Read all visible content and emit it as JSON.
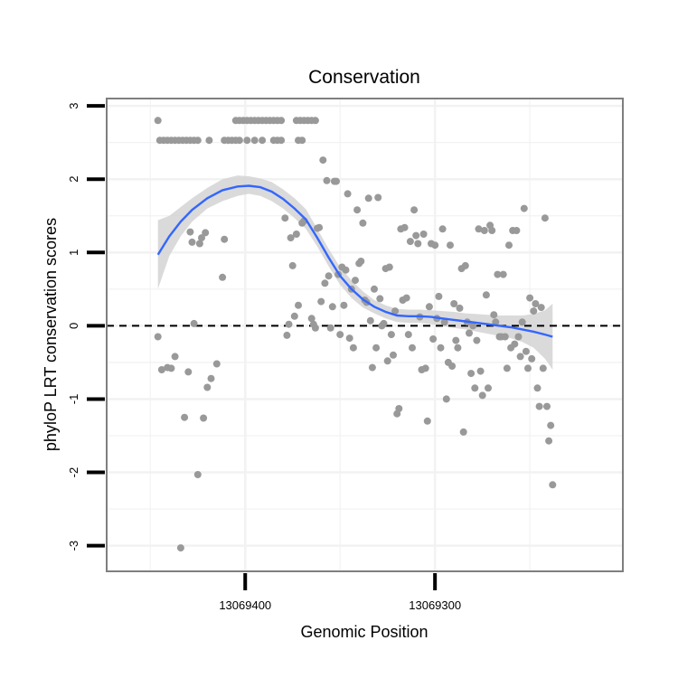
{
  "chart_data": {
    "type": "scatter",
    "title": "Conservation",
    "xlabel": "Genomic Position",
    "ylabel": "phyloP LRT conservation scores",
    "x_reversed": true,
    "xlim": [
      13069473,
      13069201
    ],
    "ylim": [
      -3.35,
      3.1
    ],
    "x_ticks": [
      13069400,
      13069300
    ],
    "x_tick_labels": [
      "13069400",
      "13069300"
    ],
    "y_ticks": [
      -3,
      -2,
      -1,
      0,
      1,
      2,
      3
    ],
    "y_tick_labels": [
      "-3",
      "-2",
      "-1",
      "0",
      "1",
      "2",
      "3"
    ],
    "grid": true,
    "reference_line": {
      "y": 0,
      "style": "dashed"
    },
    "colors": {
      "points": "#999999",
      "smooth_line": "#3366ff",
      "confidence_band": "#d3d3d3",
      "panel_border": "#7f7f7f",
      "grid": "#f2f2f2"
    },
    "points": [
      [
        13069446,
        2.8
      ],
      [
        13069445,
        2.53
      ],
      [
        13069443,
        2.53
      ],
      [
        13069441,
        2.53
      ],
      [
        13069439,
        2.53
      ],
      [
        13069437,
        2.53
      ],
      [
        13069435,
        2.53
      ],
      [
        13069433,
        2.53
      ],
      [
        13069431,
        2.53
      ],
      [
        13069429,
        2.53
      ],
      [
        13069427,
        2.53
      ],
      [
        13069425,
        2.53
      ],
      [
        13069419,
        2.53
      ],
      [
        13069411,
        2.53
      ],
      [
        13069409,
        2.53
      ],
      [
        13069407,
        2.53
      ],
      [
        13069405,
        2.53
      ],
      [
        13069403,
        2.53
      ],
      [
        13069399,
        2.53
      ],
      [
        13069395,
        2.53
      ],
      [
        13069391,
        2.53
      ],
      [
        13069385,
        2.53
      ],
      [
        13069383,
        2.53
      ],
      [
        13069381,
        2.53
      ],
      [
        13069372,
        2.53
      ],
      [
        13069370,
        2.53
      ],
      [
        13069405,
        2.8
      ],
      [
        13069403,
        2.8
      ],
      [
        13069401,
        2.8
      ],
      [
        13069399,
        2.8
      ],
      [
        13069397,
        2.8
      ],
      [
        13069395,
        2.8
      ],
      [
        13069393,
        2.8
      ],
      [
        13069391,
        2.8
      ],
      [
        13069389,
        2.8
      ],
      [
        13069387,
        2.8
      ],
      [
        13069385,
        2.8
      ],
      [
        13069383,
        2.8
      ],
      [
        13069381,
        2.8
      ],
      [
        13069373,
        2.8
      ],
      [
        13069371,
        2.8
      ],
      [
        13069369,
        2.8
      ],
      [
        13069367,
        2.8
      ],
      [
        13069365,
        2.8
      ],
      [
        13069363,
        2.8
      ],
      [
        13069446,
        -0.15
      ],
      [
        13069444,
        -0.6
      ],
      [
        13069441,
        -0.57
      ],
      [
        13069439,
        -0.58
      ],
      [
        13069437,
        -0.42
      ],
      [
        13069434,
        -3.03
      ],
      [
        13069432,
        -1.25
      ],
      [
        13069430,
        -0.63
      ],
      [
        13069429,
        1.28
      ],
      [
        13069428,
        1.14
      ],
      [
        13069427,
        0.03
      ],
      [
        13069425,
        -2.03
      ],
      [
        13069424,
        1.12
      ],
      [
        13069423,
        1.2
      ],
      [
        13069422,
        -1.26
      ],
      [
        13069421,
        1.27
      ],
      [
        13069420,
        -0.84
      ],
      [
        13069418,
        -0.72
      ],
      [
        13069415,
        -0.52
      ],
      [
        13069412,
        0.66
      ],
      [
        13069411,
        1.18
      ],
      [
        13069379,
        1.47
      ],
      [
        13069378,
        -0.13
      ],
      [
        13069377,
        0.02
      ],
      [
        13069376,
        1.2
      ],
      [
        13069375,
        0.82
      ],
      [
        13069374,
        0.13
      ],
      [
        13069373,
        1.25
      ],
      [
        13069372,
        0.28
      ],
      [
        13069370,
        1.4
      ],
      [
        13069369,
        1.43
      ],
      [
        13069365,
        0.1
      ],
      [
        13069364,
        0.02
      ],
      [
        13069363,
        -0.03
      ],
      [
        13069362,
        1.33
      ],
      [
        13069361,
        1.34
      ],
      [
        13069360,
        0.33
      ],
      [
        13069359,
        2.26
      ],
      [
        13069358,
        0.58
      ],
      [
        13069357,
        1.98
      ],
      [
        13069356,
        0.68
      ],
      [
        13069355,
        -0.03
      ],
      [
        13069354,
        0.26
      ],
      [
        13069353,
        1.97
      ],
      [
        13069352,
        1.97
      ],
      [
        13069351,
        0.7
      ],
      [
        13069350,
        -0.12
      ],
      [
        13069349,
        0.8
      ],
      [
        13069348,
        0.28
      ],
      [
        13069347,
        0.76
      ],
      [
        13069346,
        1.8
      ],
      [
        13069345,
        -0.17
      ],
      [
        13069344,
        0.5
      ],
      [
        13069343,
        -0.3
      ],
      [
        13069342,
        0.62
      ],
      [
        13069341,
        1.58
      ],
      [
        13069340,
        0.85
      ],
      [
        13069339,
        0.88
      ],
      [
        13069338,
        1.4
      ],
      [
        13069337,
        0.35
      ],
      [
        13069336,
        0.32
      ],
      [
        13069335,
        1.74
      ],
      [
        13069334,
        0.07
      ],
      [
        13069333,
        -0.57
      ],
      [
        13069332,
        0.5
      ],
      [
        13069331,
        -0.3
      ],
      [
        13069330,
        1.75
      ],
      [
        13069329,
        0.37
      ],
      [
        13069328,
        0.0
      ],
      [
        13069327,
        0.03
      ],
      [
        13069326,
        0.78
      ],
      [
        13069325,
        -0.48
      ],
      [
        13069324,
        0.8
      ],
      [
        13069323,
        -0.12
      ],
      [
        13069322,
        -0.4
      ],
      [
        13069321,
        0.2
      ],
      [
        13069320,
        -1.2
      ],
      [
        13069319,
        -1.13
      ],
      [
        13069318,
        1.32
      ],
      [
        13069317,
        0.35
      ],
      [
        13069316,
        1.34
      ],
      [
        13069315,
        0.38
      ],
      [
        13069314,
        -0.12
      ],
      [
        13069313,
        1.15
      ],
      [
        13069312,
        -0.3
      ],
      [
        13069311,
        1.58
      ],
      [
        13069310,
        1.23
      ],
      [
        13069309,
        1.12
      ],
      [
        13069308,
        0.12
      ],
      [
        13069307,
        -0.6
      ],
      [
        13069306,
        1.25
      ],
      [
        13069305,
        -0.58
      ],
      [
        13069304,
        -1.3
      ],
      [
        13069303,
        0.26
      ],
      [
        13069302,
        1.12
      ],
      [
        13069301,
        -0.18
      ],
      [
        13069300,
        1.1
      ],
      [
        13069299,
        0.1
      ],
      [
        13069298,
        0.4
      ],
      [
        13069297,
        -0.3
      ],
      [
        13069296,
        1.32
      ],
      [
        13069295,
        0.05
      ],
      [
        13069294,
        -1.0
      ],
      [
        13069293,
        -0.5
      ],
      [
        13069292,
        1.1
      ],
      [
        13069291,
        -0.55
      ],
      [
        13069290,
        0.3
      ],
      [
        13069289,
        -0.2
      ],
      [
        13069288,
        -0.3
      ],
      [
        13069287,
        0.24
      ],
      [
        13069286,
        0.78
      ],
      [
        13069285,
        -1.45
      ],
      [
        13069284,
        0.82
      ],
      [
        13069283,
        0.05
      ],
      [
        13069282,
        -0.1
      ],
      [
        13069281,
        -0.65
      ],
      [
        13069280,
        0.0
      ],
      [
        13069279,
        -0.85
      ],
      [
        13069278,
        -0.2
      ],
      [
        13069277,
        1.32
      ],
      [
        13069276,
        -0.62
      ],
      [
        13069275,
        -0.95
      ],
      [
        13069274,
        1.3
      ],
      [
        13069273,
        0.42
      ],
      [
        13069272,
        -0.85
      ],
      [
        13069271,
        1.37
      ],
      [
        13069270,
        1.3
      ],
      [
        13069269,
        0.15
      ],
      [
        13069268,
        0.05
      ],
      [
        13069267,
        0.7
      ],
      [
        13069266,
        -0.15
      ],
      [
        13069265,
        -0.15
      ],
      [
        13069264,
        0.7
      ],
      [
        13069263,
        -0.15
      ],
      [
        13069262,
        -0.58
      ],
      [
        13069261,
        1.1
      ],
      [
        13069260,
        -0.3
      ],
      [
        13069259,
        1.3
      ],
      [
        13069258,
        -0.25
      ],
      [
        13069257,
        1.3
      ],
      [
        13069256,
        -0.15
      ],
      [
        13069255,
        -0.42
      ],
      [
        13069254,
        0.05
      ],
      [
        13069253,
        1.6
      ],
      [
        13069252,
        -0.35
      ],
      [
        13069251,
        -0.58
      ],
      [
        13069250,
        0.38
      ],
      [
        13069249,
        -0.45
      ],
      [
        13069248,
        0.2
      ],
      [
        13069247,
        0.3
      ],
      [
        13069246,
        -0.85
      ],
      [
        13069245,
        -1.1
      ],
      [
        13069244,
        0.25
      ],
      [
        13069243,
        -0.58
      ],
      [
        13069242,
        1.47
      ],
      [
        13069241,
        -1.1
      ],
      [
        13069240,
        -1.57
      ],
      [
        13069239,
        -1.36
      ],
      [
        13069238,
        -2.17
      ]
    ],
    "smooth_fit": {
      "x": [
        13069446,
        13069440,
        13069434,
        13069428,
        13069420,
        13069412,
        13069404,
        13069398,
        13069392,
        13069386,
        13069380,
        13069374,
        13069368,
        13069362,
        13069356,
        13069350,
        13069344,
        13069338,
        13069332,
        13069326,
        13069320,
        13069314,
        13069308,
        13069302,
        13069296,
        13069290,
        13069284,
        13069278,
        13069272,
        13069266,
        13069260,
        13069254,
        13069248,
        13069242,
        13069238
      ],
      "y": [
        0.97,
        1.22,
        1.42,
        1.58,
        1.74,
        1.85,
        1.9,
        1.91,
        1.89,
        1.83,
        1.73,
        1.6,
        1.45,
        1.2,
        0.93,
        0.68,
        0.5,
        0.36,
        0.26,
        0.19,
        0.14,
        0.13,
        0.13,
        0.12,
        0.1,
        0.08,
        0.06,
        0.04,
        0.02,
        0.0,
        -0.02,
        -0.05,
        -0.08,
        -0.12,
        -0.15
      ],
      "lower": [
        0.5,
        0.95,
        1.22,
        1.42,
        1.6,
        1.7,
        1.77,
        1.8,
        1.77,
        1.7,
        1.6,
        1.47,
        1.32,
        1.08,
        0.81,
        0.56,
        0.38,
        0.25,
        0.17,
        0.1,
        0.05,
        0.04,
        0.04,
        0.02,
        0.0,
        -0.03,
        -0.05,
        -0.08,
        -0.11,
        -0.14,
        -0.17,
        -0.22,
        -0.3,
        -0.45,
        -0.6
      ],
      "upper": [
        1.44,
        1.5,
        1.62,
        1.74,
        1.88,
        2.0,
        2.05,
        2.04,
        2.01,
        1.96,
        1.86,
        1.74,
        1.59,
        1.32,
        1.05,
        0.8,
        0.62,
        0.47,
        0.35,
        0.28,
        0.23,
        0.22,
        0.22,
        0.21,
        0.2,
        0.19,
        0.17,
        0.16,
        0.15,
        0.14,
        0.14,
        0.14,
        0.16,
        0.21,
        0.3
      ]
    }
  }
}
